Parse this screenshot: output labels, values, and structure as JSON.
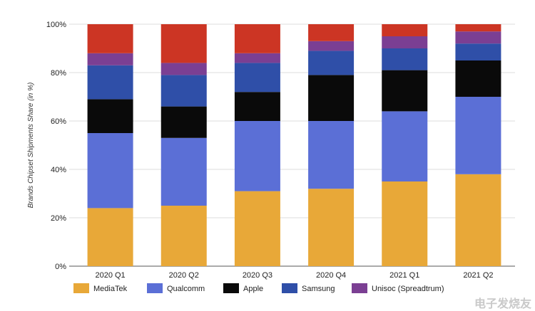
{
  "chart_data": {
    "type": "bar",
    "stacked": true,
    "categories": [
      "2020 Q1",
      "2020 Q2",
      "2020 Q3",
      "2020 Q4",
      "2021 Q1",
      "2021 Q2"
    ],
    "ylabel": "Brands Chipset Shipments Share (in %)",
    "ylim": [
      0,
      100
    ],
    "yticks": [
      "0%",
      "20%",
      "40%",
      "60%",
      "80%",
      "100%"
    ],
    "grid": true,
    "legend_position": "bottom",
    "series": [
      {
        "name": "MediaTek",
        "color": "#e8a838",
        "values": [
          24,
          25,
          31,
          32,
          35,
          38
        ]
      },
      {
        "name": "Qualcomm",
        "color": "#5b6fd6",
        "values": [
          31,
          28,
          29,
          28,
          29,
          32
        ]
      },
      {
        "name": "Apple",
        "color": "#0a0a0a",
        "values": [
          14,
          13,
          12,
          19,
          17,
          15
        ]
      },
      {
        "name": "Samsung",
        "color": "#2f4fa8",
        "values": [
          14,
          13,
          12,
          10,
          9,
          7
        ]
      },
      {
        "name": "Unisoc (Spreadtrum)",
        "color": "#7b3f93",
        "values": [
          5,
          5,
          4,
          4,
          5,
          5
        ]
      },
      {
        "name": "",
        "color": "#cc3524",
        "values": [
          12,
          16,
          12,
          7,
          5,
          3
        ]
      }
    ]
  },
  "legend": {
    "items": [
      "MediaTek",
      "Qualcomm",
      "Apple",
      "Samsung",
      "Unisoc (Spreadtrum)"
    ]
  },
  "watermark": "电子发烧友"
}
